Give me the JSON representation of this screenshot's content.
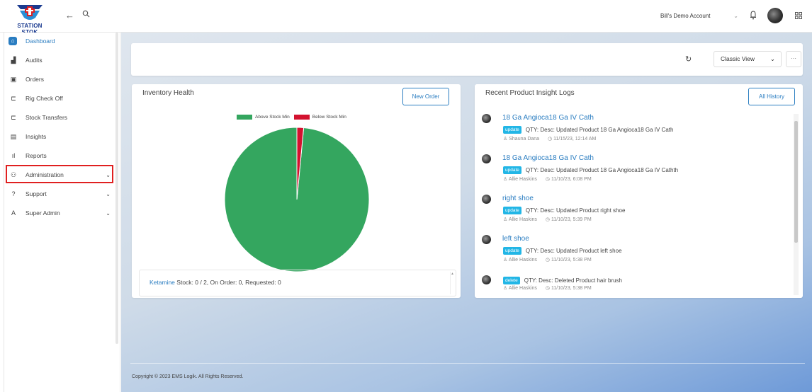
{
  "app": {
    "brand": "STATION STOK"
  },
  "header": {
    "account": "Bill's Demo Account"
  },
  "sidebar": {
    "items": [
      {
        "label": "Dashboard",
        "icon": "home-icon"
      },
      {
        "label": "Audits",
        "icon": "boxes-icon"
      },
      {
        "label": "Orders",
        "icon": "clipboard-icon"
      },
      {
        "label": "Rig Check Off",
        "icon": "truck-icon"
      },
      {
        "label": "Stock Transfers",
        "icon": "transfer-truck-icon"
      },
      {
        "label": "Insights",
        "icon": "document-icon"
      },
      {
        "label": "Reports",
        "icon": "bar-chart-icon"
      },
      {
        "label": "Administration",
        "icon": "user-admin-icon"
      },
      {
        "label": "Support",
        "icon": "help-icon"
      },
      {
        "label": "Super Admin",
        "icon": "super-admin-icon"
      }
    ]
  },
  "viewbar": {
    "view_select": "Classic View",
    "more": "···"
  },
  "inventory": {
    "title": "Inventory Health",
    "new_order": "New Order",
    "legend": [
      "Above Stock Min",
      "Below Stock Min"
    ],
    "stock_item": "Ketamine",
    "stock_text": " Stock: 0 / 2, On Order: 0, Requested: 0"
  },
  "chart_data": {
    "type": "pie",
    "labels": [
      "Above Stock Min",
      "Below Stock Min"
    ],
    "values": [
      98.5,
      1.5
    ],
    "colors": [
      "#34a65f",
      "#d3122f"
    ],
    "legend_position": "top"
  },
  "logs": {
    "title": "Recent Product Insight Logs",
    "all_history": "All History",
    "entries": [
      {
        "name": "18 Ga Angioca18 Ga IV Cath",
        "badge": "update",
        "desc": "QTY:  Desc: Updated Product 18 Ga Angioca18 Ga IV Cath",
        "user": "Shauna Dana",
        "time": "11/15/23, 12:14 AM"
      },
      {
        "name": "18 Ga Angioca18 Ga IV Cath",
        "badge": "update",
        "desc": "QTY:  Desc: Updated Product 18 Ga Angioca18 Ga IV Cathth",
        "user": "Allie Haskins",
        "time": "11/10/23, 6:08 PM"
      },
      {
        "name": "right shoe",
        "badge": "update",
        "desc": "QTY:  Desc: Updated Product right shoe",
        "user": "Allie Haskins",
        "time": "11/10/23, 5:39 PM"
      },
      {
        "name": "left shoe",
        "badge": "update",
        "desc": "QTY:  Desc: Updated Product left shoe",
        "user": "Allie Haskins",
        "time": "11/10/23, 5:38 PM"
      },
      {
        "name": "",
        "badge": "delete",
        "desc": "QTY:  Desc: Deleted Product  hair brush",
        "user": "Allie Haskins",
        "time": "11/10/23, 5:38 PM"
      }
    ]
  },
  "footer": {
    "copyright": "Copyright © 2023 EMS Logik. All Rights Reserved."
  }
}
